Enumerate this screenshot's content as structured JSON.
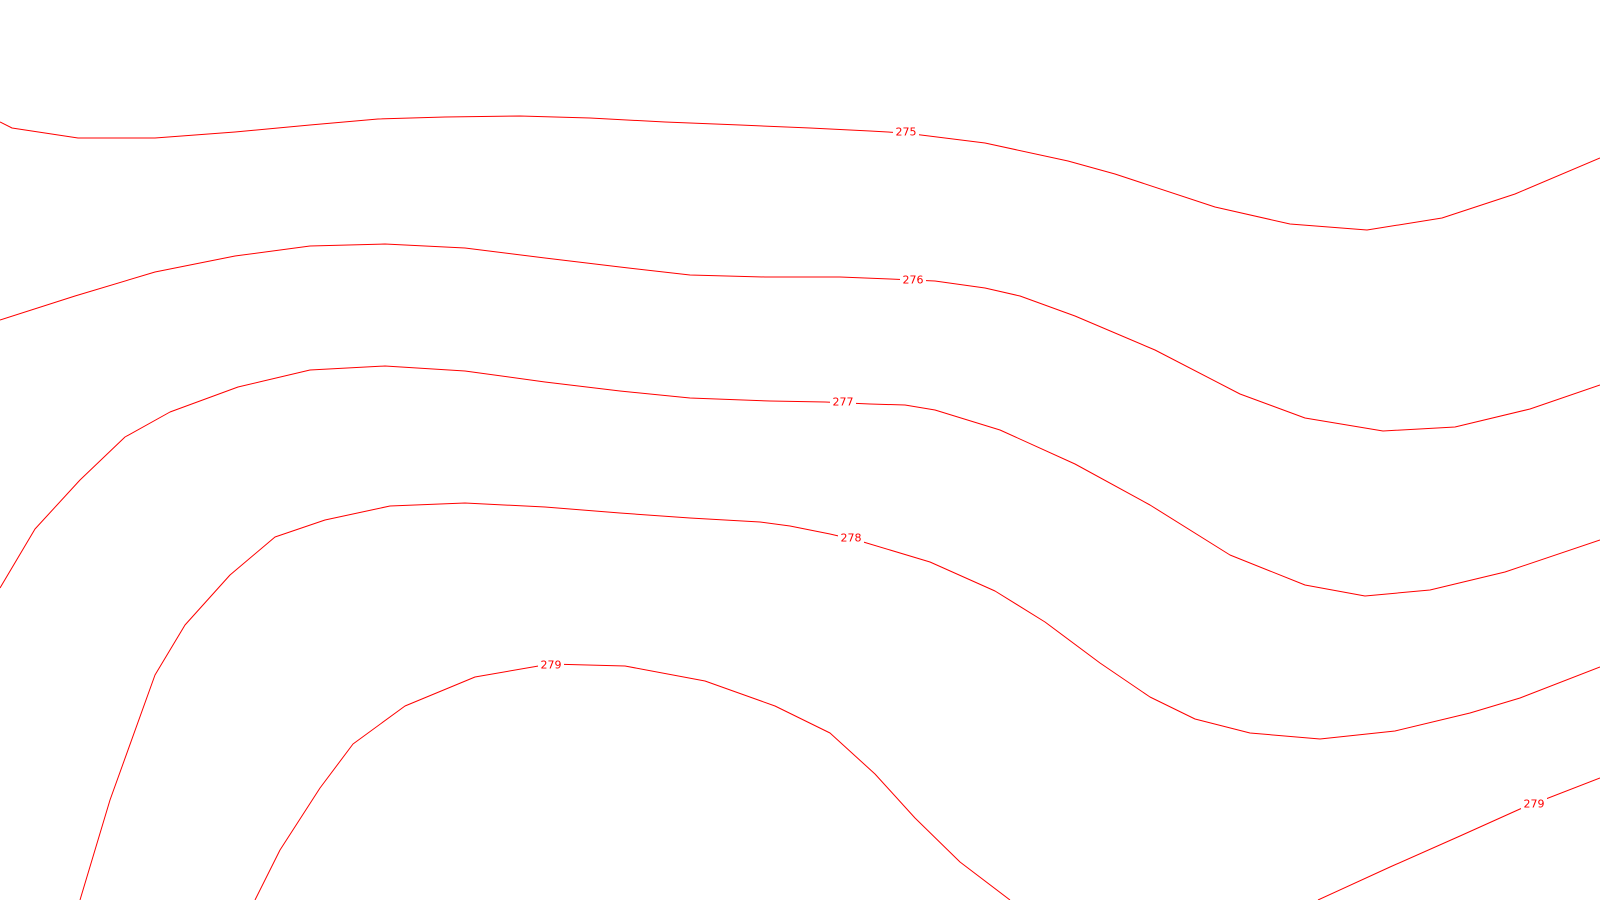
{
  "map": {
    "line_color": "#ff0000",
    "background_color": "#ffffff",
    "contours": [
      {
        "id": "275",
        "value": "275"
      },
      {
        "id": "276",
        "value": "276"
      },
      {
        "id": "277",
        "value": "277"
      },
      {
        "id": "278",
        "value": "278"
      },
      {
        "id": "279-left",
        "value": "279"
      },
      {
        "id": "279-right",
        "value": "279"
      }
    ]
  }
}
